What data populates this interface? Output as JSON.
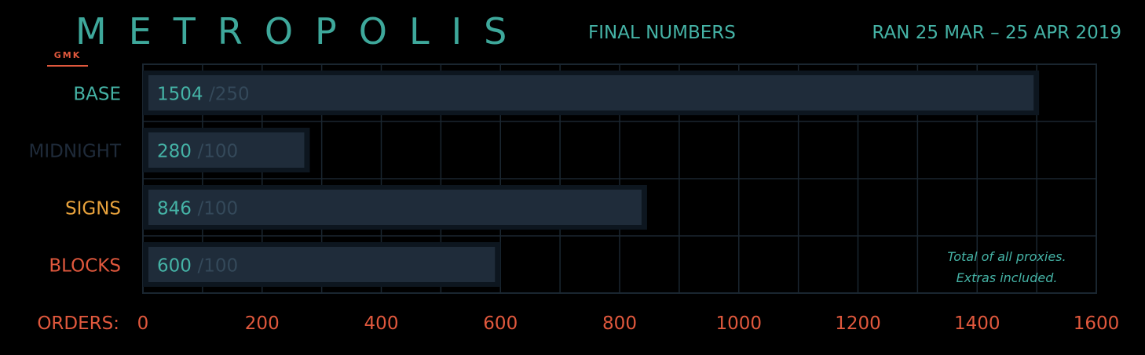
{
  "header": {
    "badge": "GMK",
    "brand": "METROPOLIS",
    "subtitle": "FINAL NUMBERS",
    "run_dates": "RAN 25 MAR – 25 APR 2019"
  },
  "colors": {
    "teal": "#45b3a6",
    "dark_label": "#1f2b3a",
    "orange": "#e8a23c",
    "red": "#e0583d",
    "bar_fill": "#1f2c3a",
    "bar_edge": "#0d161f",
    "grid": "#1a2630",
    "moq_gray": "#34495a"
  },
  "chart_data": {
    "type": "bar",
    "orientation": "horizontal",
    "categories": [
      "BASE",
      "MIDNIGHT",
      "SIGNS",
      "BLOCKS"
    ],
    "category_colors": [
      "#45b3a6",
      "#1f2b3a",
      "#e8a23c",
      "#e0583d"
    ],
    "values": [
      1504,
      280,
      846,
      600
    ],
    "moq_labels": [
      "/250",
      "/100",
      "/100",
      "/100"
    ],
    "xlabel": "ORDERS:",
    "xlim": [
      0,
      1600
    ],
    "xticks": [
      0,
      200,
      400,
      600,
      800,
      1000,
      1200,
      1400,
      1600
    ],
    "grid": true,
    "annotation": [
      "Total of all proxies.",
      "Extras included."
    ]
  }
}
